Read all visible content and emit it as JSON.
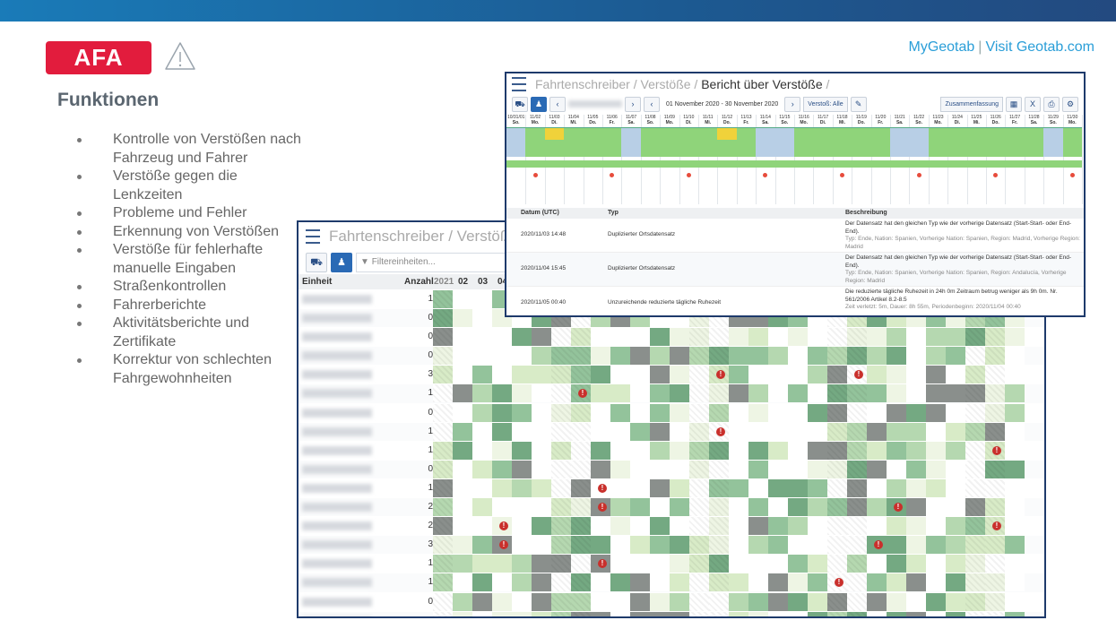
{
  "header": {
    "badge": "AFA",
    "links": {
      "mygeotab": "MyGeotab",
      "separator": "|",
      "visit": "Visit Geotab.com"
    }
  },
  "section_title": "Funktionen",
  "features": [
    "Kontrolle von Verstößen nach Fahrzeug und Fahrer",
    "Verstöße gegen die Lenkzeiten",
    "Probleme und Fehler",
    "Erkennung von Verstößen",
    "Verstöße für fehlerhafte manuelle Eingaben",
    "Straßenkontrollen",
    "Fahrerberichte",
    "Aktivitätsberichte und Zertifikate",
    "Korrektur von schlechten Fahrgewohnheiten"
  ],
  "back_window": {
    "title": "Fahrtenschreiber / Verstöße",
    "filter_placeholder": "Filtereinheiten...",
    "columns": {
      "unit": "Einheit",
      "count": "Anzahl",
      "days": [
        "2021",
        "02",
        "03",
        "04"
      ]
    },
    "counts": [
      "1",
      "0",
      "0",
      "0",
      "3",
      "1",
      "0",
      "1",
      "1",
      "0",
      "1",
      "2",
      "2",
      "3",
      "1",
      "1",
      "0",
      "0"
    ]
  },
  "front_window": {
    "breadcrumb": {
      "part1": "Fahrtenschreiber",
      "sep": "/",
      "part2": "Verstöße",
      "current": "Bericht über Verstöße",
      "tail": "/"
    },
    "date_range": "01 November 2020 - 30 November 2020",
    "violation_filter": "Verstoß: Alle",
    "summary_button": "Zusammenfassung",
    "days": [
      "10/31/01",
      "11/02",
      "11/03",
      "11/04",
      "11/05",
      "11/06",
      "11/07",
      "11/08",
      "11/09",
      "11/10",
      "11/11",
      "11/12",
      "11/13",
      "11/14",
      "11/15",
      "11/16",
      "11/17",
      "11/18",
      "11/19",
      "11/20",
      "11/21",
      "11/22",
      "11/23",
      "11/24",
      "11/25",
      "11/26",
      "11/27",
      "11/28",
      "11/29",
      "11/30"
    ],
    "weekdays": [
      "So.",
      "Mo.",
      "Di.",
      "Mi.",
      "Do.",
      "Fr.",
      "Sa.",
      "So.",
      "Mo.",
      "Di.",
      "Mi.",
      "Do.",
      "Fr.",
      "Sa.",
      "So.",
      "Mo.",
      "Di.",
      "Mi.",
      "Do.",
      "Fr.",
      "Sa.",
      "So.",
      "Mo.",
      "Di.",
      "Mi.",
      "Do.",
      "Fr.",
      "Sa.",
      "So.",
      "Mo."
    ],
    "table_headers": {
      "date": "Datum (UTC)",
      "type": "Typ",
      "description": "Beschreibung"
    },
    "rows": [
      {
        "date": "2020/11/03 14:48",
        "type": "Duplizierter Ortsdatensatz",
        "desc": "Der Datensatz hat den gleichen Typ wie der vorherige Datensatz (Start-Start- oder End-End).",
        "sub": "Typ: Ende, Nation: Spanien, Vorherige Nation: Spanien, Region: Madrid, Vorherige Region: Madrid"
      },
      {
        "date": "2020/11/04 15:45",
        "type": "Duplizierter Ortsdatensatz",
        "desc": "Der Datensatz hat den gleichen Typ wie der vorherige Datensatz (Start-Start- oder End-End).",
        "sub": "Typ: Ende, Nation: Spanien, Vorherige Nation: Spanien, Region: Andalucía, Vorherige Region: Madrid"
      },
      {
        "date": "2020/11/05 00:40",
        "type": "Unzureichende reduzierte tägliche Ruhezeit",
        "desc": "Die reduzierte tägliche Ruhezeit in 24h 0m Zeitraum betrug weniger als 9h 0m. Nr. 561/2006 Artikel 8.2-8.5",
        "sub": "Zeit verletzt: 5m, Dauer: 8h 55m, Periodenbeginn: 2020/11/04 00:40"
      }
    ]
  },
  "colors": {
    "accent": "#e21c3d",
    "brand_link": "#2a9ed8",
    "frame": "#1e3a6b",
    "heat_dark": "#6f9a7b",
    "heat_mid": "#9fc7a2",
    "heat_light": "#e2f0d0",
    "alert": "#c9302c"
  }
}
